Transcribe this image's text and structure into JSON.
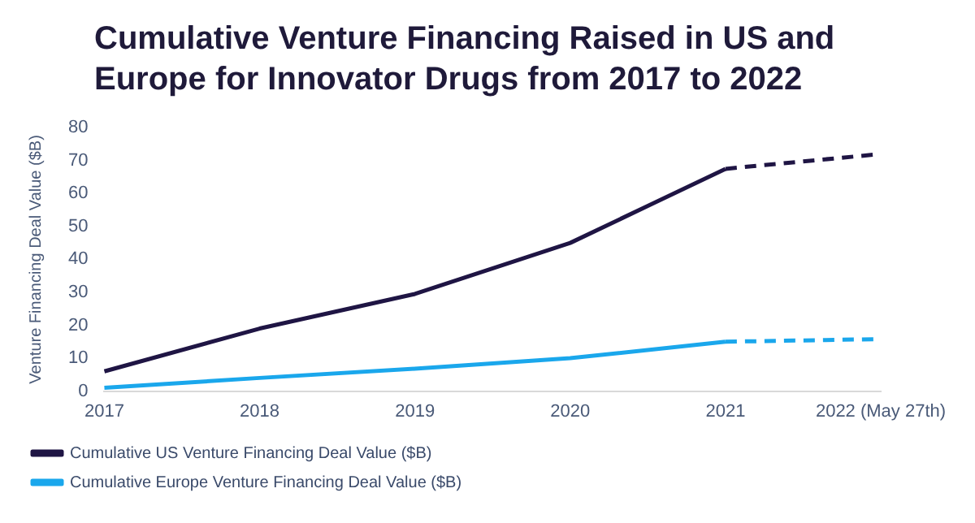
{
  "chart_data": {
    "type": "line",
    "title": "Cumulative Venture Financing Raised in US and Europe for Innovator Drugs from 2017 to 2022",
    "ylabel": "Venture Financing Deal Value ($B)",
    "categories": [
      "2017",
      "2018",
      "2019",
      "2020",
      "2021",
      "2022 (May 27th)"
    ],
    "series": [
      {
        "name": "Cumulative US Venture Financing Deal Value ($B)",
        "color": "#1f1544",
        "values": [
          6,
          19,
          29.5,
          45,
          67.5,
          null
        ],
        "line_style": "solid"
      },
      {
        "color": "#1f1544",
        "values": [
          null,
          null,
          null,
          null,
          67.5,
          72
        ],
        "line_style": "dashed"
      },
      {
        "name": "Cumulative Europe Venture Financing Deal Value ($B)",
        "color": "#1aa7ec",
        "values": [
          1,
          4,
          6.8,
          10,
          15,
          null
        ],
        "line_style": "solid"
      },
      {
        "color": "#1aa7ec",
        "values": [
          null,
          null,
          null,
          null,
          15,
          15.8
        ],
        "line_style": "dashed"
      }
    ],
    "ylim": [
      0,
      80
    ],
    "yticks": [
      0,
      10,
      20,
      30,
      40,
      50,
      60,
      70,
      80
    ],
    "grid": false,
    "legend": "bottom",
    "marker": "none"
  }
}
